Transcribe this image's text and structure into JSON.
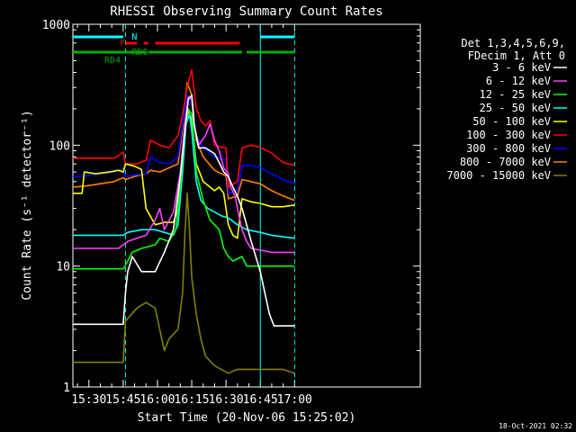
{
  "chart_data": {
    "type": "line",
    "title": "RHESSI Observing Summary Count Rates",
    "xlabel": "Start Time (20-Nov-06 15:25:02)",
    "ylabel": "Count Rate (s⁻¹ detector⁻¹)",
    "ylog": true,
    "ylim": [
      1,
      1000
    ],
    "xlim": [
      -2,
      150
    ],
    "x_units": "minutes after 15:25:02",
    "x_tick_labels": [
      "15:30",
      "15:45",
      "16:00",
      "16:15",
      "16:30",
      "16:45",
      "17:00"
    ],
    "x_ticks": [
      5,
      20,
      35,
      50,
      65,
      80,
      95
    ],
    "y_tick_labels": [
      "1",
      "10",
      "100",
      "1000"
    ],
    "y_ticks": [
      1,
      10,
      100,
      1000
    ],
    "legend_header": [
      "Det 1,3,4,5,6,9,",
      "FDecim 1, Att 0"
    ],
    "legend_position": "right",
    "series": [
      {
        "name": "3 - 6 keV",
        "color": "#ffffff",
        "points": [
          [
            -2,
            3.3
          ],
          [
            20,
            3.3
          ],
          [
            21,
            6
          ],
          [
            22,
            9
          ],
          [
            24,
            12
          ],
          [
            28,
            9
          ],
          [
            34,
            9
          ],
          [
            38,
            13
          ],
          [
            42,
            20
          ],
          [
            45,
            55
          ],
          [
            47,
            130
          ],
          [
            48.5,
            240
          ],
          [
            50,
            260
          ],
          [
            51,
            150
          ],
          [
            53,
            95
          ],
          [
            56,
            95
          ],
          [
            60,
            85
          ],
          [
            62,
            72
          ],
          [
            64,
            60
          ],
          [
            66,
            55
          ],
          [
            68,
            45
          ],
          [
            70,
            38
          ],
          [
            72,
            30
          ],
          [
            74,
            22
          ],
          [
            76,
            16
          ],
          [
            78,
            12
          ],
          [
            80,
            9
          ],
          [
            82,
            6
          ],
          [
            84,
            4
          ],
          [
            86,
            3.2
          ],
          [
            95,
            3.2
          ]
        ]
      },
      {
        "name": "6 - 12 keV",
        "color": "#ff40ff",
        "points": [
          [
            -2,
            14
          ],
          [
            18,
            14
          ],
          [
            20,
            15
          ],
          [
            22,
            16
          ],
          [
            26,
            17
          ],
          [
            30,
            18
          ],
          [
            34,
            24
          ],
          [
            36,
            30
          ],
          [
            38,
            20
          ],
          [
            42,
            28
          ],
          [
            45,
            60
          ],
          [
            47,
            150
          ],
          [
            48.5,
            250
          ],
          [
            50,
            240
          ],
          [
            51,
            150
          ],
          [
            53,
            100
          ],
          [
            56,
            120
          ],
          [
            58,
            150
          ],
          [
            60,
            110
          ],
          [
            62,
            90
          ],
          [
            64,
            65
          ],
          [
            66,
            58
          ],
          [
            67,
            45
          ],
          [
            69,
            38
          ],
          [
            70,
            30
          ],
          [
            72,
            20
          ],
          [
            74,
            16
          ],
          [
            76,
            14
          ],
          [
            85,
            13
          ],
          [
            95,
            13
          ]
        ]
      },
      {
        "name": "12 - 25 keV",
        "color": "#00ff00",
        "points": [
          [
            -2,
            9.5
          ],
          [
            20,
            9.5
          ],
          [
            22,
            11
          ],
          [
            24,
            13
          ],
          [
            28,
            14
          ],
          [
            34,
            15
          ],
          [
            36,
            17
          ],
          [
            40,
            16
          ],
          [
            43,
            20
          ],
          [
            45,
            45
          ],
          [
            47,
            130
          ],
          [
            48.5,
            200
          ],
          [
            50,
            180
          ],
          [
            51,
            110
          ],
          [
            52,
            60
          ],
          [
            55,
            35
          ],
          [
            58,
            24
          ],
          [
            62,
            20
          ],
          [
            64,
            14
          ],
          [
            66,
            12
          ],
          [
            68,
            11
          ],
          [
            72,
            12
          ],
          [
            74,
            10
          ],
          [
            78,
            10
          ],
          [
            85,
            10
          ],
          [
            95,
            10
          ]
        ]
      },
      {
        "name": "25 - 50 keV",
        "color": "#00ffff",
        "points": [
          [
            -2,
            18
          ],
          [
            20,
            18
          ],
          [
            22,
            19
          ],
          [
            28,
            20
          ],
          [
            34,
            20
          ],
          [
            38,
            19
          ],
          [
            42,
            18
          ],
          [
            44,
            22
          ],
          [
            46,
            60
          ],
          [
            47.5,
            150
          ],
          [
            49,
            180
          ],
          [
            50,
            130
          ],
          [
            51,
            80
          ],
          [
            52,
            50
          ],
          [
            54,
            35
          ],
          [
            57,
            30
          ],
          [
            60,
            28
          ],
          [
            63,
            26
          ],
          [
            66,
            25
          ],
          [
            70,
            22
          ],
          [
            74,
            20
          ],
          [
            80,
            19
          ],
          [
            85,
            18
          ],
          [
            95,
            17
          ]
        ]
      },
      {
        "name": "50 - 100 keV",
        "color": "#ffff00",
        "points": [
          [
            -2,
            40
          ],
          [
            2,
            40
          ],
          [
            3,
            60
          ],
          [
            8,
            58
          ],
          [
            14,
            60
          ],
          [
            18,
            62
          ],
          [
            20,
            60
          ],
          [
            21,
            70
          ],
          [
            25,
            67
          ],
          [
            28,
            63
          ],
          [
            30,
            30
          ],
          [
            34,
            22
          ],
          [
            38,
            23
          ],
          [
            42,
            23
          ],
          [
            44,
            30
          ],
          [
            46,
            80
          ],
          [
            48,
            200
          ],
          [
            50,
            160
          ],
          [
            52,
            70
          ],
          [
            55,
            50
          ],
          [
            60,
            42
          ],
          [
            62,
            45
          ],
          [
            64,
            40
          ],
          [
            66,
            22
          ],
          [
            68,
            18
          ],
          [
            70,
            17
          ],
          [
            72,
            36
          ],
          [
            76,
            34
          ],
          [
            80,
            33
          ],
          [
            85,
            31
          ],
          [
            90,
            31
          ],
          [
            95,
            32
          ]
        ]
      },
      {
        "name": "100 - 300 keV",
        "color": "#ff0000",
        "points": [
          [
            -2,
            78
          ],
          [
            4,
            78
          ],
          [
            10,
            78
          ],
          [
            16,
            78
          ],
          [
            18,
            82
          ],
          [
            20,
            88
          ],
          [
            21,
            70
          ],
          [
            26,
            70
          ],
          [
            30,
            75
          ],
          [
            32,
            110
          ],
          [
            36,
            100
          ],
          [
            40,
            95
          ],
          [
            44,
            120
          ],
          [
            46,
            180
          ],
          [
            48,
            300
          ],
          [
            50,
            420
          ],
          [
            52,
            200
          ],
          [
            54,
            160
          ],
          [
            56,
            145
          ],
          [
            58,
            160
          ],
          [
            60,
            100
          ],
          [
            63,
            96
          ],
          [
            65,
            95
          ],
          [
            66,
            45
          ],
          [
            70,
            50
          ],
          [
            72,
            95
          ],
          [
            76,
            100
          ],
          [
            80,
            96
          ],
          [
            85,
            86
          ],
          [
            90,
            72
          ],
          [
            95,
            68
          ]
        ]
      },
      {
        "name": "300 - 800 keV",
        "color": "#0000ff",
        "points": [
          [
            -2,
            55
          ],
          [
            4,
            56
          ],
          [
            10,
            58
          ],
          [
            16,
            60
          ],
          [
            20,
            64
          ],
          [
            21,
            55
          ],
          [
            26,
            57
          ],
          [
            30,
            58
          ],
          [
            32,
            80
          ],
          [
            36,
            72
          ],
          [
            40,
            70
          ],
          [
            44,
            80
          ],
          [
            46,
            150
          ],
          [
            48,
            260
          ],
          [
            50,
            220
          ],
          [
            52,
            120
          ],
          [
            55,
            95
          ],
          [
            60,
            80
          ],
          [
            63,
            78
          ],
          [
            65,
            75
          ],
          [
            66,
            40
          ],
          [
            70,
            42
          ],
          [
            72,
            68
          ],
          [
            76,
            68
          ],
          [
            80,
            65
          ],
          [
            85,
            58
          ],
          [
            90,
            52
          ],
          [
            95,
            48
          ]
        ]
      },
      {
        "name": "800 - 7000 keV",
        "color": "#ff8000",
        "points": [
          [
            -2,
            45
          ],
          [
            4,
            46
          ],
          [
            10,
            48
          ],
          [
            16,
            50
          ],
          [
            20,
            54
          ],
          [
            21,
            52
          ],
          [
            26,
            56
          ],
          [
            30,
            58
          ],
          [
            32,
            62
          ],
          [
            36,
            60
          ],
          [
            40,
            65
          ],
          [
            44,
            70
          ],
          [
            46,
            140
          ],
          [
            48,
            330
          ],
          [
            50,
            260
          ],
          [
            52,
            110
          ],
          [
            55,
            80
          ],
          [
            60,
            62
          ],
          [
            63,
            58
          ],
          [
            65,
            56
          ],
          [
            66,
            36
          ],
          [
            70,
            38
          ],
          [
            72,
            52
          ],
          [
            76,
            50
          ],
          [
            80,
            48
          ],
          [
            85,
            42
          ],
          [
            90,
            38
          ],
          [
            95,
            35
          ]
        ]
      },
      {
        "name": "7000 - 15000 keV",
        "color": "#808000",
        "points": [
          [
            -2,
            1.6
          ],
          [
            20,
            1.6
          ],
          [
            21,
            3.5
          ],
          [
            26,
            4.5
          ],
          [
            30,
            5
          ],
          [
            34,
            4.5
          ],
          [
            36,
            3
          ],
          [
            38,
            2
          ],
          [
            40,
            2.5
          ],
          [
            44,
            3
          ],
          [
            46,
            6
          ],
          [
            47,
            18
          ],
          [
            48,
            40
          ],
          [
            49,
            20
          ],
          [
            50,
            8
          ],
          [
            52,
            4
          ],
          [
            54,
            2.5
          ],
          [
            56,
            1.8
          ],
          [
            60,
            1.5
          ],
          [
            66,
            1.3
          ],
          [
            70,
            1.4
          ],
          [
            80,
            1.4
          ],
          [
            90,
            1.4
          ],
          [
            95,
            1.3
          ]
        ]
      }
    ],
    "status_bars": [
      {
        "label": "N",
        "color": "#00ffff",
        "level": 1,
        "segments": [
          [
            -2,
            20
          ],
          [
            80,
            95
          ]
        ]
      },
      {
        "label": "F",
        "color": "#ff0000",
        "level": 2,
        "segments": [
          [
            21,
            26
          ],
          [
            29,
            31
          ],
          [
            34,
            71
          ]
        ]
      },
      {
        "label": "RD0",
        "color": "#00aa00",
        "level": 3,
        "segments": [
          [
            -2,
            20
          ],
          [
            31,
            62
          ],
          [
            63,
            72
          ],
          [
            74,
            95
          ]
        ]
      },
      {
        "label": "RD4",
        "color": "#00aa00",
        "level": 4,
        "segments": [
          [
            20,
            30
          ],
          [
            62,
            63
          ]
        ]
      }
    ],
    "vertical_lines": [
      {
        "x": 21,
        "color": "#00ffff",
        "style": "dashed"
      },
      {
        "x": 95,
        "color": "#00ffff",
        "style": "dashed"
      },
      {
        "x": 80,
        "color": "#00ffff",
        "style": "solid"
      }
    ]
  },
  "footer": {
    "timestamp": "18-Oct-2021 02:32"
  }
}
